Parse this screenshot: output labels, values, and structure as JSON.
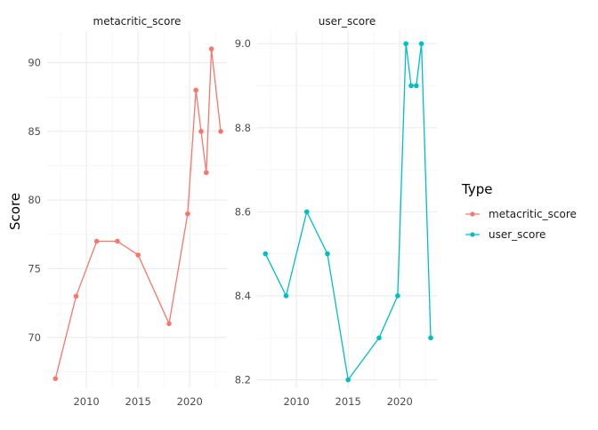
{
  "chart_data": {
    "type": "line",
    "ylabel": "Score",
    "legend": {
      "title": "Type",
      "placement": "right",
      "entries": [
        {
          "label": "metacritic_score",
          "color": "#F8766D"
        },
        {
          "label": "user_score",
          "color": "#00BFC4"
        }
      ]
    },
    "grid": true,
    "facets": [
      {
        "title": "metacritic_score",
        "color": "#F8766D",
        "xlim": [
          2006.2,
          2023.6
        ],
        "ylim": [
          66.3,
          92.3
        ],
        "xticks": [
          2010,
          2015,
          2020
        ],
        "yticks": [
          70,
          75,
          80,
          85,
          90
        ],
        "x": [
          2007,
          2009,
          2011,
          2013,
          2015,
          2018,
          2019.8,
          2020.6,
          2021.1,
          2021.6,
          2022.1,
          2023
        ],
        "y": [
          67,
          73,
          77,
          77,
          76,
          71,
          79,
          88,
          85,
          82,
          91,
          85
        ]
      },
      {
        "title": "user_score",
        "color": "#00BFC4",
        "xlim": [
          2006.2,
          2023.6
        ],
        "ylim": [
          8.18,
          9.03
        ],
        "xticks": [
          2010,
          2015,
          2020
        ],
        "yticks": [
          "8.2",
          "8.4",
          "8.6",
          "8.8",
          "9.0"
        ],
        "ytick_values": [
          8.2,
          8.4,
          8.6,
          8.8,
          9.0
        ],
        "x": [
          2007,
          2009,
          2011,
          2013,
          2015,
          2018,
          2019.8,
          2020.6,
          2021.1,
          2021.6,
          2022.1,
          2023
        ],
        "y": [
          8.5,
          8.4,
          8.6,
          8.5,
          8.2,
          8.3,
          8.4,
          9.0,
          8.9,
          8.9,
          9.0,
          8.3
        ]
      }
    ]
  }
}
